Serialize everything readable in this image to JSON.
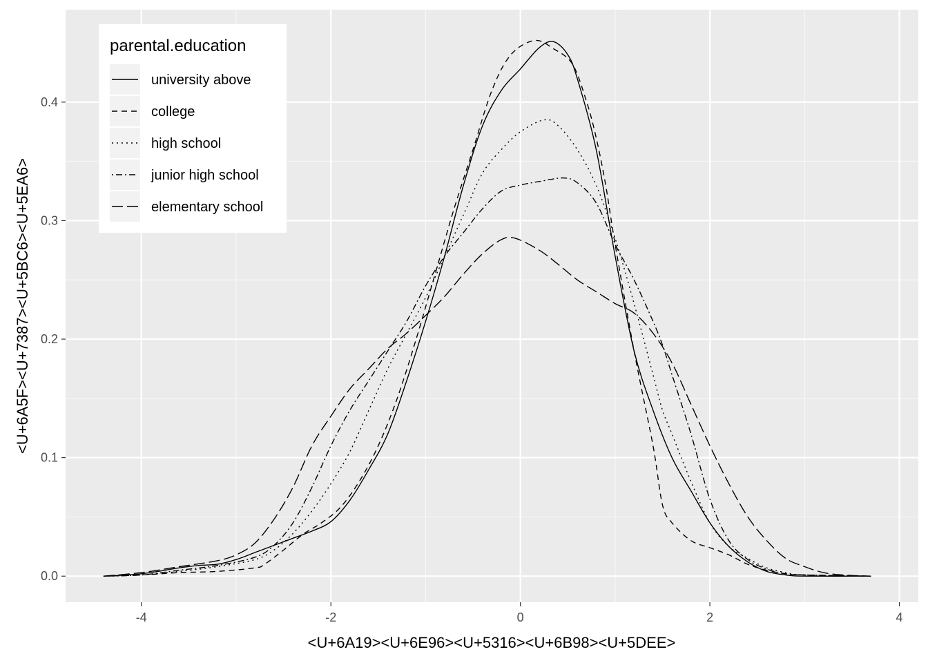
{
  "chart_data": {
    "type": "line",
    "subtype": "density",
    "xlabel": "<U+6A19><U+6E96><U+5316><U+6B98><U+5DEE>",
    "ylabel": "<U+6A5F><U+7387><U+5BC6><U+5EA6>",
    "xlim": [
      -4.8,
      4.2
    ],
    "ylim": [
      -0.022,
      0.478
    ],
    "x_ticks": [
      -4,
      -2,
      0,
      2,
      4
    ],
    "x_tick_labels": [
      "-4",
      "-2",
      "0",
      "2",
      "4"
    ],
    "y_ticks": [
      0.0,
      0.1,
      0.2,
      0.3,
      0.4
    ],
    "y_tick_labels": [
      "0.0",
      "0.1",
      "0.2",
      "0.3",
      "0.4"
    ],
    "grid": true,
    "background": "#ebebeb",
    "legend": {
      "title": "parental.education",
      "position": "top-left inside"
    },
    "series": [
      {
        "name": "university above",
        "linetype": "solid",
        "color": "#000000",
        "points": [
          [
            -4.4,
            0.0
          ],
          [
            -4.0,
            0.002
          ],
          [
            -3.6,
            0.007
          ],
          [
            -3.4,
            0.009
          ],
          [
            -3.2,
            0.01
          ],
          [
            -3.0,
            0.014
          ],
          [
            -2.8,
            0.02
          ],
          [
            -2.6,
            0.026
          ],
          [
            -2.4,
            0.032
          ],
          [
            -2.2,
            0.038
          ],
          [
            -2.0,
            0.046
          ],
          [
            -1.8,
            0.064
          ],
          [
            -1.6,
            0.09
          ],
          [
            -1.4,
            0.12
          ],
          [
            -1.2,
            0.165
          ],
          [
            -1.0,
            0.215
          ],
          [
            -0.8,
            0.27
          ],
          [
            -0.6,
            0.33
          ],
          [
            -0.4,
            0.38
          ],
          [
            -0.2,
            0.41
          ],
          [
            0.0,
            0.428
          ],
          [
            0.2,
            0.446
          ],
          [
            0.35,
            0.451
          ],
          [
            0.5,
            0.44
          ],
          [
            0.6,
            0.42
          ],
          [
            0.8,
            0.36
          ],
          [
            1.0,
            0.27
          ],
          [
            1.2,
            0.19
          ],
          [
            1.4,
            0.14
          ],
          [
            1.6,
            0.1
          ],
          [
            1.8,
            0.072
          ],
          [
            2.0,
            0.045
          ],
          [
            2.2,
            0.025
          ],
          [
            2.4,
            0.012
          ],
          [
            2.6,
            0.004
          ],
          [
            2.8,
            0.001
          ],
          [
            3.0,
            0.0
          ],
          [
            3.7,
            0.0
          ]
        ]
      },
      {
        "name": "college",
        "linetype": "dashed",
        "color": "#000000",
        "points": [
          [
            -4.4,
            0.0
          ],
          [
            -4.0,
            0.001
          ],
          [
            -3.6,
            0.003
          ],
          [
            -3.2,
            0.004
          ],
          [
            -2.8,
            0.007
          ],
          [
            -2.7,
            0.01
          ],
          [
            -2.5,
            0.022
          ],
          [
            -2.3,
            0.035
          ],
          [
            -2.1,
            0.045
          ],
          [
            -1.9,
            0.058
          ],
          [
            -1.7,
            0.08
          ],
          [
            -1.5,
            0.11
          ],
          [
            -1.3,
            0.15
          ],
          [
            -1.1,
            0.2
          ],
          [
            -0.9,
            0.255
          ],
          [
            -0.7,
            0.31
          ],
          [
            -0.5,
            0.36
          ],
          [
            -0.3,
            0.41
          ],
          [
            -0.1,
            0.44
          ],
          [
            0.15,
            0.452
          ],
          [
            0.35,
            0.445
          ],
          [
            0.55,
            0.432
          ],
          [
            0.7,
            0.4
          ],
          [
            0.8,
            0.37
          ],
          [
            0.9,
            0.33
          ],
          [
            1.0,
            0.28
          ],
          [
            1.2,
            0.19
          ],
          [
            1.4,
            0.11
          ],
          [
            1.5,
            0.06
          ],
          [
            1.6,
            0.045
          ],
          [
            1.8,
            0.03
          ],
          [
            2.0,
            0.024
          ],
          [
            2.2,
            0.018
          ],
          [
            2.4,
            0.01
          ],
          [
            2.6,
            0.005
          ],
          [
            2.8,
            0.002
          ],
          [
            3.0,
            0.001
          ],
          [
            3.7,
            0.0
          ]
        ]
      },
      {
        "name": "high school",
        "linetype": "dotted",
        "color": "#000000",
        "points": [
          [
            -4.4,
            0.0
          ],
          [
            -4.0,
            0.001
          ],
          [
            -3.6,
            0.004
          ],
          [
            -3.2,
            0.008
          ],
          [
            -2.8,
            0.014
          ],
          [
            -2.6,
            0.022
          ],
          [
            -2.4,
            0.036
          ],
          [
            -2.2,
            0.055
          ],
          [
            -2.0,
            0.078
          ],
          [
            -1.8,
            0.105
          ],
          [
            -1.6,
            0.14
          ],
          [
            -1.4,
            0.175
          ],
          [
            -1.2,
            0.205
          ],
          [
            -1.0,
            0.235
          ],
          [
            -0.8,
            0.27
          ],
          [
            -0.6,
            0.305
          ],
          [
            -0.4,
            0.34
          ],
          [
            -0.2,
            0.36
          ],
          [
            0.0,
            0.375
          ],
          [
            0.25,
            0.385
          ],
          [
            0.4,
            0.38
          ],
          [
            0.6,
            0.36
          ],
          [
            0.8,
            0.33
          ],
          [
            1.0,
            0.285
          ],
          [
            1.2,
            0.23
          ],
          [
            1.4,
            0.17
          ],
          [
            1.5,
            0.14
          ],
          [
            1.6,
            0.12
          ],
          [
            1.8,
            0.08
          ],
          [
            2.0,
            0.045
          ],
          [
            2.2,
            0.025
          ],
          [
            2.4,
            0.015
          ],
          [
            2.6,
            0.007
          ],
          [
            2.8,
            0.003
          ],
          [
            3.0,
            0.001
          ],
          [
            3.7,
            0.0
          ]
        ]
      },
      {
        "name": "junior high school",
        "linetype": "dotdash",
        "color": "#000000",
        "points": [
          [
            -4.4,
            0.0
          ],
          [
            -4.0,
            0.001
          ],
          [
            -3.6,
            0.005
          ],
          [
            -3.2,
            0.009
          ],
          [
            -2.8,
            0.016
          ],
          [
            -2.6,
            0.026
          ],
          [
            -2.4,
            0.045
          ],
          [
            -2.2,
            0.075
          ],
          [
            -2.0,
            0.11
          ],
          [
            -1.8,
            0.14
          ],
          [
            -1.6,
            0.165
          ],
          [
            -1.4,
            0.19
          ],
          [
            -1.2,
            0.215
          ],
          [
            -1.0,
            0.245
          ],
          [
            -0.8,
            0.27
          ],
          [
            -0.6,
            0.29
          ],
          [
            -0.4,
            0.31
          ],
          [
            -0.2,
            0.325
          ],
          [
            0.0,
            0.33
          ],
          [
            0.2,
            0.333
          ],
          [
            0.45,
            0.336
          ],
          [
            0.6,
            0.332
          ],
          [
            0.8,
            0.315
          ],
          [
            1.0,
            0.28
          ],
          [
            1.2,
            0.25
          ],
          [
            1.4,
            0.215
          ],
          [
            1.5,
            0.195
          ],
          [
            1.6,
            0.17
          ],
          [
            1.8,
            0.12
          ],
          [
            2.0,
            0.065
          ],
          [
            2.2,
            0.03
          ],
          [
            2.4,
            0.014
          ],
          [
            2.6,
            0.006
          ],
          [
            2.8,
            0.002
          ],
          [
            3.0,
            0.001
          ],
          [
            3.7,
            0.0
          ]
        ]
      },
      {
        "name": "elementary school",
        "linetype": "longdash",
        "color": "#000000",
        "points": [
          [
            -4.4,
            0.0
          ],
          [
            -4.0,
            0.003
          ],
          [
            -3.6,
            0.008
          ],
          [
            -3.2,
            0.013
          ],
          [
            -3.0,
            0.018
          ],
          [
            -2.8,
            0.028
          ],
          [
            -2.6,
            0.048
          ],
          [
            -2.4,
            0.075
          ],
          [
            -2.2,
            0.11
          ],
          [
            -2.0,
            0.135
          ],
          [
            -1.8,
            0.158
          ],
          [
            -1.6,
            0.175
          ],
          [
            -1.4,
            0.192
          ],
          [
            -1.2,
            0.205
          ],
          [
            -1.0,
            0.22
          ],
          [
            -0.8,
            0.236
          ],
          [
            -0.6,
            0.255
          ],
          [
            -0.4,
            0.272
          ],
          [
            -0.2,
            0.284
          ],
          [
            -0.05,
            0.285
          ],
          [
            0.2,
            0.275
          ],
          [
            0.4,
            0.263
          ],
          [
            0.6,
            0.25
          ],
          [
            0.8,
            0.24
          ],
          [
            1.0,
            0.23
          ],
          [
            1.2,
            0.222
          ],
          [
            1.4,
            0.205
          ],
          [
            1.6,
            0.18
          ],
          [
            1.8,
            0.145
          ],
          [
            2.0,
            0.11
          ],
          [
            2.2,
            0.078
          ],
          [
            2.4,
            0.05
          ],
          [
            2.6,
            0.03
          ],
          [
            2.8,
            0.015
          ],
          [
            3.0,
            0.008
          ],
          [
            3.2,
            0.003
          ],
          [
            3.4,
            0.001
          ],
          [
            3.7,
            0.0
          ]
        ]
      }
    ]
  }
}
